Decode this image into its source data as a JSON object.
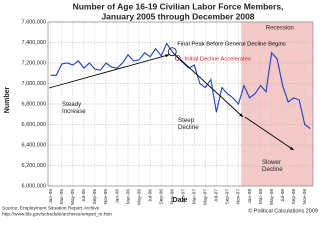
{
  "chart_data": {
    "type": "line",
    "title": "Number of Age 16-19 Civilian Labor Force Members,",
    "subtitle": "January 2005 through December 2008",
    "x_label": "Date",
    "y_label": "Number",
    "categories": [
      "Jan-05",
      null,
      "Mar-05",
      null,
      "May-05",
      null,
      "Jul-05",
      null,
      "Sep-05",
      null,
      "Nov-05",
      null,
      "Jan-06",
      null,
      "Mar-06",
      null,
      "May-06",
      null,
      "Jul-06",
      null,
      "Sep-06",
      null,
      "Nov-06",
      null,
      "Jan-07",
      null,
      "Mar-07",
      null,
      "May-07",
      null,
      "Jul-07",
      null,
      "Sep-07",
      null,
      "Nov-07",
      null,
      "Jan-08",
      null,
      "Mar-08",
      null,
      "May-08",
      null,
      "Jul-08",
      null,
      "Sep-08",
      null,
      "Nov-08",
      null
    ],
    "series": [
      {
        "name": "Number",
        "color": "#1f3fbf",
        "values": [
          7080000,
          7080000,
          7190000,
          7200000,
          7180000,
          7220000,
          7150000,
          7200000,
          7140000,
          7130000,
          7200000,
          7160000,
          7150000,
          7200000,
          7280000,
          7220000,
          7230000,
          7300000,
          7260000,
          7340000,
          7270000,
          7390000,
          7310000,
          7250000,
          7200000,
          7150000,
          7180000,
          7000000,
          6960000,
          7040000,
          6720000,
          6960000,
          6900000,
          6860000,
          6800000,
          6980000,
          6860000,
          6900000,
          6980000,
          6920000,
          7300000,
          7240000,
          6980000,
          6820000,
          6860000,
          6840000,
          6600000,
          6560000
        ]
      }
    ],
    "ylim": [
      6000000,
      7600000
    ],
    "yticks": [
      {
        "value": 6000000,
        "label": "6,000,000"
      },
      {
        "value": 6200000,
        "label": "6,200,000"
      },
      {
        "value": 6400000,
        "label": "6,400,000"
      },
      {
        "value": 6600000,
        "label": "6,600,000"
      },
      {
        "value": 6800000,
        "label": "6,800,000"
      },
      {
        "value": 7000000,
        "label": "7,000,000"
      },
      {
        "value": 7200000,
        "label": "7,200,000"
      },
      {
        "value": 7400000,
        "label": "7,400,000"
      },
      {
        "value": 7600000,
        "label": "7,600,000"
      }
    ],
    "grid": true,
    "shaded_region": {
      "label": "Recession",
      "from": 35,
      "to": 47,
      "color": "#f6c9c9"
    },
    "highlights": [
      {
        "label": "Final Peak Before General Decline Begins",
        "index": 22,
        "color": "#000000"
      },
      {
        "label": "Initial Decline Accelerates",
        "index": 23,
        "color": "#d02020"
      }
    ],
    "annotations": [
      "Steady Increase",
      "Steep Decline",
      "Slower Decline"
    ],
    "source": [
      "Source: Employment Situation Report Archive",
      "http://www.bls.gov/schedule/archives/empsit_nr.htm"
    ],
    "credit": "© Political Calculations 2009"
  }
}
